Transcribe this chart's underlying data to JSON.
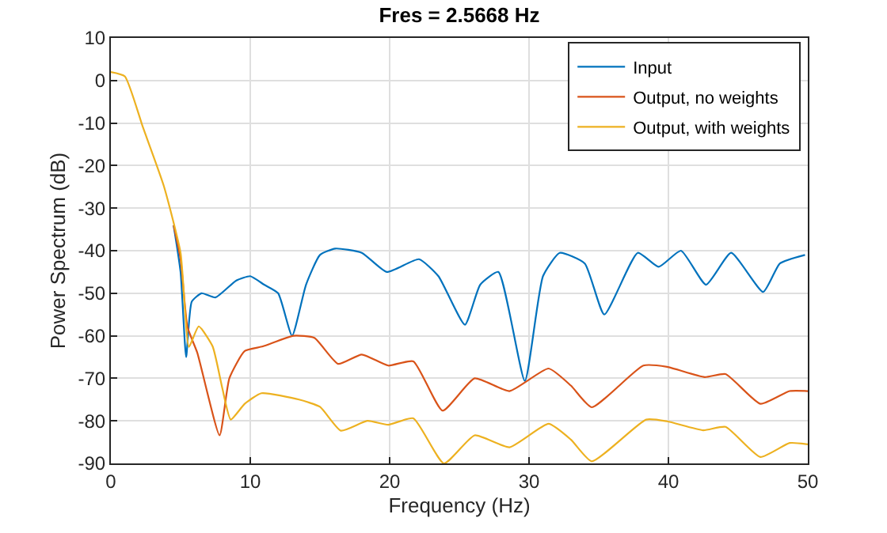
{
  "chart_data": {
    "type": "line",
    "title": "Fres = 2.5668 Hz",
    "xlabel": "Frequency (Hz)",
    "ylabel": "Power Spectrum (dB)",
    "xlim": [
      0,
      50
    ],
    "xticks": [
      0,
      10,
      20,
      30,
      40,
      50
    ],
    "ylim": [
      -90,
      10
    ],
    "yticks": [
      -90,
      -80,
      -70,
      -60,
      -50,
      -40,
      -30,
      -20,
      -10,
      0,
      10
    ],
    "grid": true,
    "legend": "top right",
    "series": [
      {
        "name": "Input",
        "color": "#0072bd",
        "x": [
          4.5,
          5,
          5.4,
          5.8,
          6.5,
          7.5,
          9,
          10,
          11,
          12,
          13,
          14,
          15,
          16.1,
          18,
          19.8,
          22.1,
          23.5,
          25.4,
          26.5,
          27.8,
          29.7,
          31,
          32.2,
          34,
          35.4,
          37.8,
          39.3,
          40.9,
          42.7,
          44.5,
          46.8,
          48,
          49.8
        ],
        "values": [
          -34,
          -45,
          -65,
          -52,
          -50,
          -51,
          -47,
          -46,
          -48,
          -50,
          -60,
          -48,
          -41,
          -39.5,
          -40.5,
          -45,
          -42,
          -46,
          -57.4,
          -48,
          -45,
          -70.6,
          -46,
          -40.5,
          -43,
          -55,
          -40.5,
          -43.8,
          -40,
          -48,
          -40.5,
          -49.7,
          -43,
          -41
        ]
      },
      {
        "name": "Output, no weights",
        "color": "#d95319",
        "x": [
          4.5,
          5,
          5.5,
          6.2,
          7.8,
          8.5,
          9.6,
          10.9,
          13.1,
          14.6,
          16.3,
          18,
          19.9,
          21.7,
          23.8,
          26.1,
          28.6,
          31.4,
          33,
          34.5,
          38.2,
          39.9,
          42.6,
          44.1,
          46.6,
          48.7,
          50
        ],
        "values": [
          -34,
          -42,
          -58,
          -64,
          -83.4,
          -70,
          -63.6,
          -62.5,
          -60,
          -60.5,
          -66.6,
          -64.4,
          -67,
          -66,
          -77.6,
          -70,
          -73,
          -67.7,
          -71.7,
          -76.8,
          -67,
          -67.3,
          -69.7,
          -69,
          -76,
          -73,
          -73
        ]
      },
      {
        "name": "Output, with weights",
        "color": "#edb120",
        "x": [
          0,
          1,
          2.3,
          3.8,
          5,
          5.6,
          6.3,
          7.3,
          8,
          8.6,
          9.6,
          10.8,
          13.5,
          15,
          16.5,
          18.4,
          19.9,
          21.7,
          23.9,
          26.1,
          28.6,
          31.4,
          33,
          34.5,
          38.4,
          39.9,
          42.5,
          44.1,
          46.6,
          48.7,
          50
        ],
        "values": [
          2,
          1,
          -11,
          -24.8,
          -40.5,
          -62.6,
          -57.8,
          -62.5,
          -72.4,
          -79.7,
          -76,
          -73.5,
          -75,
          -76.7,
          -82.3,
          -80,
          -80.9,
          -79.4,
          -90,
          -83.4,
          -86.2,
          -80.7,
          -84.4,
          -89.5,
          -79.7,
          -80.1,
          -82.2,
          -81.4,
          -88.5,
          -85.2,
          -85.5
        ]
      }
    ]
  }
}
